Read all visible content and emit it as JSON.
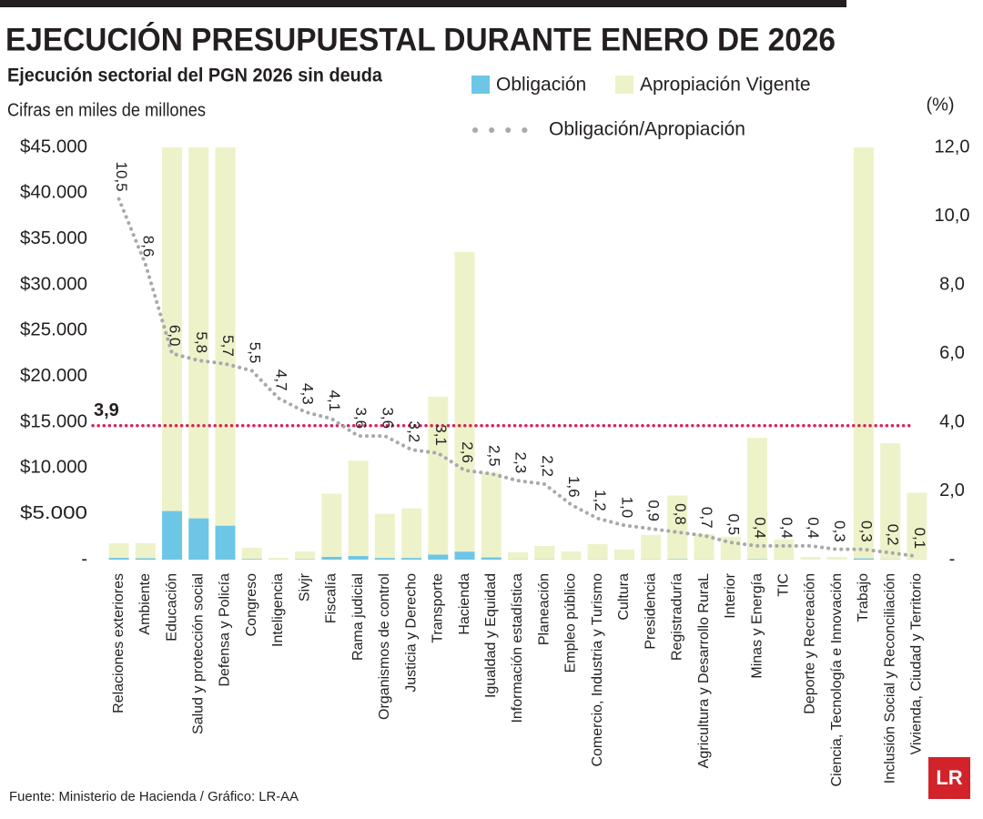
{
  "chart_data": {
    "type": "bar",
    "title": "EJECUCIÓN PRESUPUESTAL DURANTE ENERO DE 2026",
    "subtitle": "Ejecución sectorial del PGN 2026 sin deuda",
    "ylabel": "Cifras en miles de millones",
    "y2label": "(%)",
    "source": "Fuente: Ministerio de Hacienda / Gráfico: LR-AA",
    "logo": "LR",
    "categories": [
      "Relaciones exteriores",
      "Ambiente",
      "Educación",
      "Salud y protección social",
      "Defensa y Policía",
      "Congreso",
      "Inteligencia",
      "Sivjr",
      "Fiscalía",
      "Rama judicial",
      "Organismos de control",
      "Justicia y Derecho",
      "Transporte",
      "Hacienda",
      "Igualdad y Equidad",
      "Información estadística",
      "Planeación",
      "Empleo público",
      "Comercio, Industria y Turismo",
      "Cultura",
      "Presidencia",
      "Registraduría",
      "Agricultura y Desarrollo RuraL",
      "Interior",
      "Minas y Energía",
      "TIC",
      "Deporte y Recreación",
      "Ciencia, Tecnología e Innovación",
      "Trabajo",
      "Inclusión Social y Reconciliación",
      "Vivienda, Ciudad y Territorio"
    ],
    "series": [
      {
        "name": "Obligación",
        "color": "#6ec6e6",
        "values": [
          190,
          150,
          5300,
          4500,
          3700,
          70,
          10,
          40,
          300,
          390,
          180,
          180,
          550,
          870,
          240,
          20,
          30,
          15,
          20,
          10,
          25,
          55,
          20,
          12,
          50,
          9,
          1,
          1,
          130,
          25,
          7
        ]
      },
      {
        "name": "Apropiación Vigente",
        "color": "#eef2c9",
        "values": [
          1800,
          1800,
          45000,
          45000,
          45000,
          1300,
          200,
          900,
          7200,
          10800,
          5000,
          5600,
          17800,
          33600,
          9500,
          800,
          1500,
          900,
          1700,
          1100,
          2700,
          7000,
          2800,
          2500,
          13300,
          2200,
          300,
          300,
          45000,
          12700,
          7300
        ]
      },
      {
        "name": "Obligación/Apropiación",
        "type": "line",
        "axis": "y2",
        "color": "#a7a9ac",
        "values": [
          10.5,
          8.6,
          6.0,
          5.8,
          5.7,
          5.5,
          4.7,
          4.3,
          4.1,
          3.6,
          3.6,
          3.2,
          3.1,
          2.6,
          2.5,
          2.3,
          2.2,
          1.6,
          1.2,
          1.0,
          0.9,
          0.8,
          0.7,
          0.5,
          0.4,
          0.4,
          0.4,
          0.3,
          0.3,
          0.2,
          0.1
        ],
        "value_labels": [
          "10,5",
          "8,6",
          "6,0",
          "5,8",
          "5,7",
          "5,5",
          "4,7",
          "4,3",
          "4,1",
          "3,6",
          "3,6",
          "3,2",
          "3,1",
          "2,6",
          "2,5",
          "2,3",
          "2,2",
          "1,6",
          "1,2",
          "1,0",
          "0,9",
          "0,8",
          "0,7",
          "0,5",
          "0,4",
          "0,4",
          "0,4",
          "0,3",
          "0,3",
          "0,2",
          "0,1"
        ]
      }
    ],
    "reference_line": {
      "value": 3.9,
      "label": "3,9",
      "color": "#d6245a",
      "axis": "y2"
    },
    "ylim": [
      0,
      45000
    ],
    "yticks": [
      {
        "value": 0,
        "label": "-"
      },
      {
        "value": 5000,
        "label": "$5.000"
      },
      {
        "value": 10000,
        "label": "$10.000"
      },
      {
        "value": 15000,
        "label": "$15.000"
      },
      {
        "value": 20000,
        "label": "$20.000"
      },
      {
        "value": 25000,
        "label": "$25.000"
      },
      {
        "value": 30000,
        "label": "$30.000"
      },
      {
        "value": 35000,
        "label": "$35.000"
      },
      {
        "value": 40000,
        "label": "$40.000"
      },
      {
        "value": 45000,
        "label": "$45.000"
      }
    ],
    "y2lim": [
      0,
      12
    ],
    "y2ticks": [
      {
        "value": 0,
        "label": "-"
      },
      {
        "value": 2,
        "label": "2,0"
      },
      {
        "value": 4,
        "label": "4,0"
      },
      {
        "value": 6,
        "label": "6,0"
      },
      {
        "value": 8,
        "label": "8,0"
      },
      {
        "value": 10,
        "label": "10,0"
      },
      {
        "value": 12,
        "label": "12,0"
      }
    ],
    "grid": false
  }
}
